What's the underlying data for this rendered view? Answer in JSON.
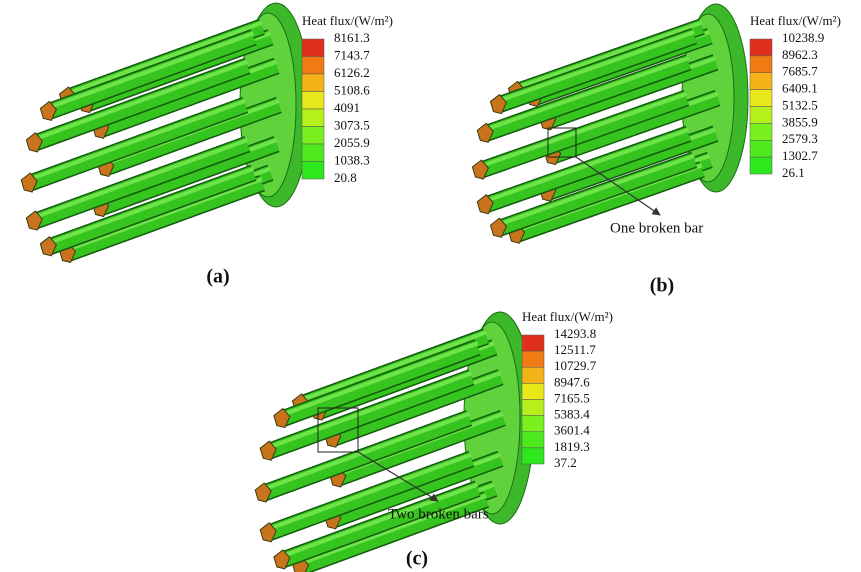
{
  "panels": [
    {
      "label": "(a)",
      "legend_title": "Heat flux/(W/m²)",
      "legend_values": [
        8161.3,
        7143.7,
        6126.2,
        5108.6,
        4091,
        3073.5,
        2055.9,
        1038.3,
        20.8
      ]
    },
    {
      "label": "(b)",
      "legend_title": "Heat flux/(W/m²)",
      "legend_values": [
        10238.9,
        8962.3,
        7685.7,
        6409.1,
        5132.5,
        3855.9,
        2579.3,
        1302.7,
        26.1
      ],
      "annotation": "One broken bar"
    },
    {
      "label": "(c)",
      "legend_title": "Heat flux/(W/m²)",
      "legend_values": [
        14293.8,
        12511.7,
        10729.7,
        8947.6,
        7165.5,
        5383.4,
        3601.4,
        1819.3,
        37.2
      ],
      "annotation": "Two broken bars"
    }
  ]
}
